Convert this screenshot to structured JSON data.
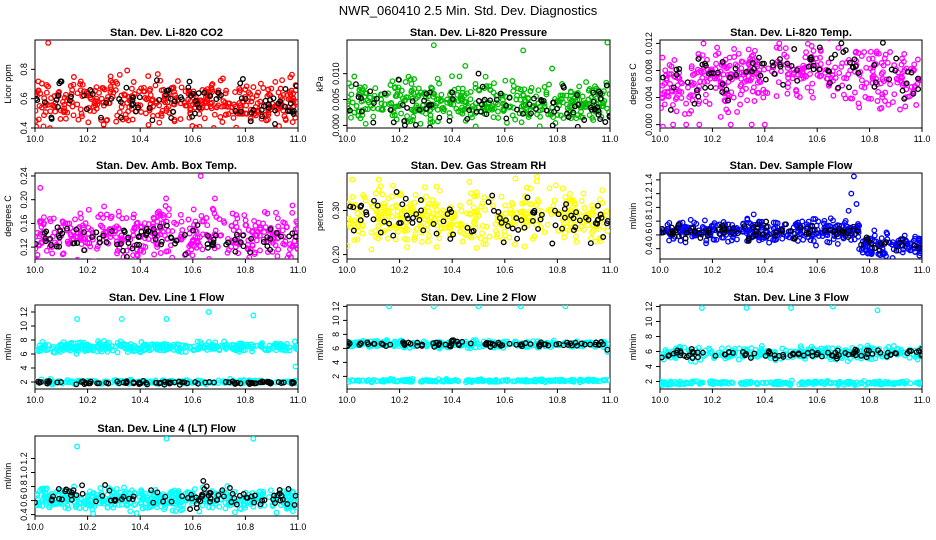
{
  "figure": {
    "title": "NWR_060410  2.5 Min. Std. Dev. Diagnostics"
  },
  "chart_data": [
    {
      "type": "scatter",
      "title": "Stan. Dev. Li-820 CO2",
      "ylabel": "Licor ppm",
      "xlabel": "",
      "xlim": [
        10.0,
        11.0
      ],
      "ylim": [
        0.4,
        1.0
      ],
      "xticks": [
        "10.0",
        "10.2",
        "10.4",
        "10.6",
        "10.8",
        "11.0"
      ],
      "yticks": [
        "0.4",
        "0.6",
        "0.8"
      ],
      "grid": false,
      "series": [
        {
          "color": "#ff0000",
          "center": 0.58,
          "spread": 0.08,
          "n": 420,
          "outliers": [
            [
              10.05,
              0.98
            ],
            [
              10.68,
              0.4
            ],
            [
              10.98,
              0.44
            ]
          ]
        },
        {
          "color": "#000000",
          "center": 0.57,
          "spread": 0.07,
          "n": 90,
          "outliers": []
        }
      ]
    },
    {
      "type": "scatter",
      "title": "Stan. Dev. Li-820 Pressure",
      "ylabel": "kPa",
      "xlabel": "",
      "xlim": [
        10.0,
        11.0
      ],
      "ylim": [
        -0.0005,
        0.0165
      ],
      "xticks": [
        "10.0",
        "10.2",
        "10.4",
        "10.6",
        "10.8",
        "11.0"
      ],
      "yticks": [
        "0.000",
        "0.005",
        "0.010"
      ],
      "grid": false,
      "series": [
        {
          "color": "#00bb00",
          "center": 0.0045,
          "spread": 0.002,
          "n": 420,
          "outliers": [
            [
              10.33,
              0.0155
            ],
            [
              10.67,
              0.0145
            ],
            [
              10.99,
              0.016
            ],
            [
              10.45,
              0.0115
            ],
            [
              10.78,
              0.011
            ]
          ]
        },
        {
          "color": "#000000",
          "center": 0.004,
          "spread": 0.0025,
          "n": 90,
          "outliers": [
            [
              10.5,
              0.01
            ]
          ]
        }
      ]
    },
    {
      "type": "scatter",
      "title": "Stan. Dev. Li-820 Temp.",
      "ylabel": "degrees C",
      "xlabel": "",
      "xlim": [
        10.0,
        11.0
      ],
      "ylim": [
        -0.0005,
        0.0125
      ],
      "xticks": [
        "10.0",
        "10.2",
        "10.4",
        "10.6",
        "10.8",
        "11.0"
      ],
      "yticks": [
        "0.000",
        "0.004",
        "0.008",
        "0.012"
      ],
      "grid": false,
      "series": [
        {
          "color": "#ff00ff",
          "center": 0.006,
          "spread": 0.0022,
          "n": 420,
          "trend": "hump",
          "outliers": [
            [
              10.05,
              0.0
            ],
            [
              10.1,
              0.0
            ],
            [
              10.15,
              0.0
            ],
            [
              10.27,
              0.0
            ],
            [
              10.35,
              0.0
            ],
            [
              10.4,
              0.0
            ]
          ]
        },
        {
          "color": "#000000",
          "center": 0.006,
          "spread": 0.002,
          "n": 90,
          "trend": "hump",
          "outliers": []
        }
      ]
    },
    {
      "type": "scatter",
      "title": "Stan. Dev. Amb. Box Temp.",
      "ylabel": "degrees C",
      "xlabel": "",
      "xlim": [
        10.0,
        11.0
      ],
      "ylim": [
        0.1,
        0.245
      ],
      "xticks": [
        "10.0",
        "10.2",
        "10.4",
        "10.6",
        "10.8",
        "11.0"
      ],
      "yticks": [
        "0.12",
        "0.16",
        "0.20",
        "0.24"
      ],
      "grid": false,
      "series": [
        {
          "color": "#ff00ff",
          "center": 0.14,
          "spread": 0.022,
          "n": 420,
          "outliers": [
            [
              10.63,
              0.24
            ],
            [
              10.02,
              0.22
            ]
          ]
        },
        {
          "color": "#000000",
          "center": 0.135,
          "spread": 0.012,
          "n": 90,
          "outliers": []
        }
      ]
    },
    {
      "type": "scatter",
      "title": "Stan. Dev. Gas Stream RH",
      "ylabel": "percent",
      "xlabel": "",
      "xlim": [
        10.0,
        11.0
      ],
      "ylim": [
        0.19,
        0.385
      ],
      "xticks": [
        "10.0",
        "10.2",
        "10.4",
        "10.6",
        "10.8",
        "11.0"
      ],
      "yticks": [
        "0.20",
        "0.30"
      ],
      "grid": false,
      "series": [
        {
          "color": "#ffff00",
          "center": 0.285,
          "spread": 0.032,
          "n": 420,
          "outliers": [
            [
              10.02,
              0.37
            ],
            [
              10.12,
              0.37
            ]
          ]
        },
        {
          "color": "#000000",
          "center": 0.28,
          "spread": 0.025,
          "n": 90,
          "outliers": []
        }
      ]
    },
    {
      "type": "scatter",
      "title": "Stan. Dev. Sample Flow",
      "ylabel": "ml/min",
      "xlabel": "",
      "xlim": [
        10.0,
        11.0
      ],
      "ylim": [
        0.25,
        1.5
      ],
      "xticks": [
        "10.0",
        "10.2",
        "10.4",
        "10.6",
        "10.8",
        "11.0"
      ],
      "yticks": [
        "0.4",
        "0.6",
        "0.8",
        "1.0",
        "1.2",
        "1.4"
      ],
      "grid": false,
      "series": [
        {
          "color": "#0000ff",
          "center": 0.66,
          "spread": 0.08,
          "n": 420,
          "step_at": 10.76,
          "center_after": 0.45,
          "outliers": [
            [
              10.74,
              1.45
            ],
            [
              10.73,
              1.2
            ],
            [
              10.75,
              1.05
            ],
            [
              10.72,
              0.95
            ],
            [
              10.99,
              0.3
            ]
          ]
        },
        {
          "color": "#000000",
          "center": 0.65,
          "spread": 0.06,
          "n": 90,
          "step_at": 10.76,
          "center_after": 0.45,
          "outliers": []
        }
      ]
    },
    {
      "type": "scatter",
      "title": "Stan. Dev. Line 1 Flow",
      "ylabel": "ml/min",
      "xlabel": "",
      "xlim": [
        10.0,
        11.0
      ],
      "ylim": [
        1.0,
        13.0
      ],
      "xticks": [
        "10.0",
        "10.2",
        "10.4",
        "10.6",
        "10.8",
        "11.0"
      ],
      "yticks": [
        "2",
        "4",
        "6",
        "8",
        "10",
        "12"
      ],
      "grid": false,
      "series": [
        {
          "color": "#00ffff",
          "center": 7.0,
          "spread": 0.35,
          "n": 360,
          "outliers": [
            [
              10.16,
              11.0
            ],
            [
              10.33,
              11.0
            ],
            [
              10.5,
              11.0
            ],
            [
              10.66,
              12.0
            ],
            [
              10.83,
              11.5
            ],
            [
              10.99,
              4.2
            ]
          ]
        },
        {
          "color": "#00ffff",
          "center": 2.0,
          "spread": 0.15,
          "n": 200,
          "outliers": []
        },
        {
          "color": "#000000",
          "center": 1.9,
          "spread": 0.12,
          "n": 90,
          "outliers": []
        }
      ]
    },
    {
      "type": "scatter",
      "title": "Stan. Dev. Line 2 Flow",
      "ylabel": "ml/min",
      "xlabel": "",
      "xlim": [
        10.0,
        11.0
      ],
      "ylim": [
        0.2,
        12.2
      ],
      "xticks": [
        "10.0",
        "10.2",
        "10.4",
        "10.6",
        "10.8",
        "11.0"
      ],
      "yticks": [
        "2",
        "4",
        "6",
        "8",
        "10",
        "12"
      ],
      "grid": false,
      "series": [
        {
          "color": "#00ffff",
          "center": 6.6,
          "spread": 0.25,
          "n": 300,
          "outliers": [
            [
              10.16,
              12.0
            ],
            [
              10.33,
              12.0
            ],
            [
              10.5,
              12.0
            ],
            [
              10.66,
              12.0
            ],
            [
              10.83,
              12.0
            ],
            [
              10.99,
              5.5
            ]
          ]
        },
        {
          "color": "#00ffff",
          "center": 1.4,
          "spread": 0.1,
          "n": 220,
          "outliers": []
        },
        {
          "color": "#000000",
          "center": 6.6,
          "spread": 0.2,
          "n": 90,
          "outliers": [
            [
              10.99,
              5.8
            ]
          ]
        }
      ]
    },
    {
      "type": "scatter",
      "title": "Stan. Dev. Line 3 Flow",
      "ylabel": "ml/min",
      "xlabel": "",
      "xlim": [
        10.0,
        11.0
      ],
      "ylim": [
        1.0,
        12.2
      ],
      "xticks": [
        "10.0",
        "10.2",
        "10.4",
        "10.6",
        "10.8",
        "11.0"
      ],
      "yticks": [
        "2",
        "4",
        "6",
        "8",
        "10",
        "12"
      ],
      "grid": false,
      "series": [
        {
          "color": "#00ffff",
          "center": 5.8,
          "spread": 0.45,
          "n": 300,
          "outliers": [
            [
              10.16,
              11.8
            ],
            [
              10.33,
              11.8
            ],
            [
              10.5,
              11.8
            ],
            [
              10.66,
              12.0
            ],
            [
              10.83,
              11.5
            ]
          ]
        },
        {
          "color": "#00ffff",
          "center": 1.8,
          "spread": 0.12,
          "n": 220,
          "outliers": []
        },
        {
          "color": "#000000",
          "center": 5.7,
          "spread": 0.3,
          "n": 90,
          "outliers": []
        }
      ]
    },
    {
      "type": "scatter",
      "title": "Stan. Dev. Line 4 (LT) Flow",
      "ylabel": "ml/min",
      "xlabel": "",
      "xlim": [
        10.0,
        11.0
      ],
      "ylim": [
        0.38,
        1.52
      ],
      "xticks": [
        "10.0",
        "10.2",
        "10.4",
        "10.6",
        "10.8",
        "11.0"
      ],
      "yticks": [
        "0.4",
        "0.6",
        "0.8",
        "1.0",
        "1.2"
      ],
      "grid": false,
      "series": [
        {
          "color": "#00ffff",
          "center": 0.62,
          "spread": 0.08,
          "n": 420,
          "outliers": [
            [
              10.16,
              1.37
            ],
            [
              10.5,
              1.48
            ],
            [
              10.83,
              1.48
            ],
            [
              10.98,
              0.45
            ]
          ]
        },
        {
          "color": "#000000",
          "center": 0.66,
          "spread": 0.07,
          "n": 90,
          "outliers": [
            [
              10.64,
              0.88
            ]
          ]
        }
      ]
    }
  ]
}
